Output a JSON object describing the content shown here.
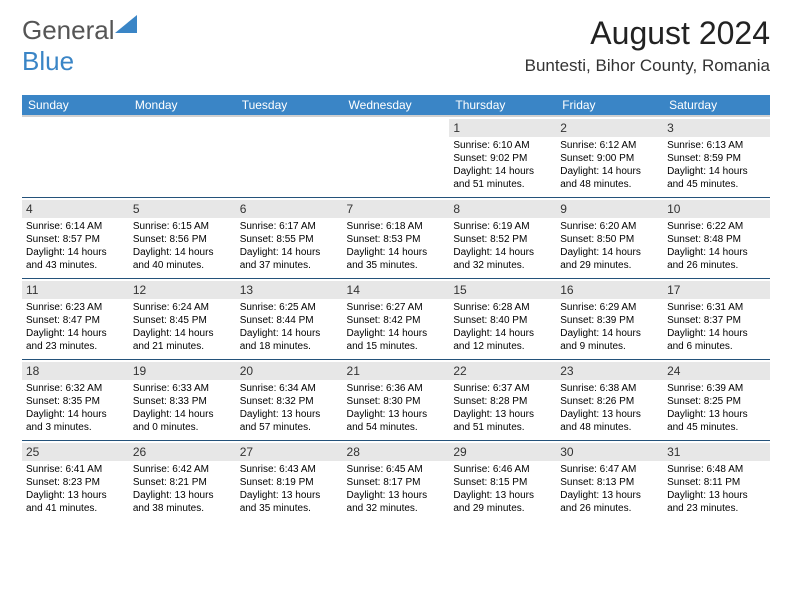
{
  "logo": {
    "general": "General",
    "blue": "Blue"
  },
  "title": "August 2024",
  "location": "Buntesti, Bihor County, Romania",
  "colors": {
    "header_bg": "#3a85c6",
    "header_fg": "#ffffff",
    "daynum_bg": "#e7e7e7",
    "row_border": "#24527a",
    "page_bg": "#ffffff"
  },
  "day_labels": [
    "Sunday",
    "Monday",
    "Tuesday",
    "Wednesday",
    "Thursday",
    "Friday",
    "Saturday"
  ],
  "weeks": [
    [
      {
        "n": "",
        "sr": "",
        "ss": "",
        "dl": ""
      },
      {
        "n": "",
        "sr": "",
        "ss": "",
        "dl": ""
      },
      {
        "n": "",
        "sr": "",
        "ss": "",
        "dl": ""
      },
      {
        "n": "",
        "sr": "",
        "ss": "",
        "dl": ""
      },
      {
        "n": "1",
        "sr": "Sunrise: 6:10 AM",
        "ss": "Sunset: 9:02 PM",
        "dl": "Daylight: 14 hours and 51 minutes."
      },
      {
        "n": "2",
        "sr": "Sunrise: 6:12 AM",
        "ss": "Sunset: 9:00 PM",
        "dl": "Daylight: 14 hours and 48 minutes."
      },
      {
        "n": "3",
        "sr": "Sunrise: 6:13 AM",
        "ss": "Sunset: 8:59 PM",
        "dl": "Daylight: 14 hours and 45 minutes."
      }
    ],
    [
      {
        "n": "4",
        "sr": "Sunrise: 6:14 AM",
        "ss": "Sunset: 8:57 PM",
        "dl": "Daylight: 14 hours and 43 minutes."
      },
      {
        "n": "5",
        "sr": "Sunrise: 6:15 AM",
        "ss": "Sunset: 8:56 PM",
        "dl": "Daylight: 14 hours and 40 minutes."
      },
      {
        "n": "6",
        "sr": "Sunrise: 6:17 AM",
        "ss": "Sunset: 8:55 PM",
        "dl": "Daylight: 14 hours and 37 minutes."
      },
      {
        "n": "7",
        "sr": "Sunrise: 6:18 AM",
        "ss": "Sunset: 8:53 PM",
        "dl": "Daylight: 14 hours and 35 minutes."
      },
      {
        "n": "8",
        "sr": "Sunrise: 6:19 AM",
        "ss": "Sunset: 8:52 PM",
        "dl": "Daylight: 14 hours and 32 minutes."
      },
      {
        "n": "9",
        "sr": "Sunrise: 6:20 AM",
        "ss": "Sunset: 8:50 PM",
        "dl": "Daylight: 14 hours and 29 minutes."
      },
      {
        "n": "10",
        "sr": "Sunrise: 6:22 AM",
        "ss": "Sunset: 8:48 PM",
        "dl": "Daylight: 14 hours and 26 minutes."
      }
    ],
    [
      {
        "n": "11",
        "sr": "Sunrise: 6:23 AM",
        "ss": "Sunset: 8:47 PM",
        "dl": "Daylight: 14 hours and 23 minutes."
      },
      {
        "n": "12",
        "sr": "Sunrise: 6:24 AM",
        "ss": "Sunset: 8:45 PM",
        "dl": "Daylight: 14 hours and 21 minutes."
      },
      {
        "n": "13",
        "sr": "Sunrise: 6:25 AM",
        "ss": "Sunset: 8:44 PM",
        "dl": "Daylight: 14 hours and 18 minutes."
      },
      {
        "n": "14",
        "sr": "Sunrise: 6:27 AM",
        "ss": "Sunset: 8:42 PM",
        "dl": "Daylight: 14 hours and 15 minutes."
      },
      {
        "n": "15",
        "sr": "Sunrise: 6:28 AM",
        "ss": "Sunset: 8:40 PM",
        "dl": "Daylight: 14 hours and 12 minutes."
      },
      {
        "n": "16",
        "sr": "Sunrise: 6:29 AM",
        "ss": "Sunset: 8:39 PM",
        "dl": "Daylight: 14 hours and 9 minutes."
      },
      {
        "n": "17",
        "sr": "Sunrise: 6:31 AM",
        "ss": "Sunset: 8:37 PM",
        "dl": "Daylight: 14 hours and 6 minutes."
      }
    ],
    [
      {
        "n": "18",
        "sr": "Sunrise: 6:32 AM",
        "ss": "Sunset: 8:35 PM",
        "dl": "Daylight: 14 hours and 3 minutes."
      },
      {
        "n": "19",
        "sr": "Sunrise: 6:33 AM",
        "ss": "Sunset: 8:33 PM",
        "dl": "Daylight: 14 hours and 0 minutes."
      },
      {
        "n": "20",
        "sr": "Sunrise: 6:34 AM",
        "ss": "Sunset: 8:32 PM",
        "dl": "Daylight: 13 hours and 57 minutes."
      },
      {
        "n": "21",
        "sr": "Sunrise: 6:36 AM",
        "ss": "Sunset: 8:30 PM",
        "dl": "Daylight: 13 hours and 54 minutes."
      },
      {
        "n": "22",
        "sr": "Sunrise: 6:37 AM",
        "ss": "Sunset: 8:28 PM",
        "dl": "Daylight: 13 hours and 51 minutes."
      },
      {
        "n": "23",
        "sr": "Sunrise: 6:38 AM",
        "ss": "Sunset: 8:26 PM",
        "dl": "Daylight: 13 hours and 48 minutes."
      },
      {
        "n": "24",
        "sr": "Sunrise: 6:39 AM",
        "ss": "Sunset: 8:25 PM",
        "dl": "Daylight: 13 hours and 45 minutes."
      }
    ],
    [
      {
        "n": "25",
        "sr": "Sunrise: 6:41 AM",
        "ss": "Sunset: 8:23 PM",
        "dl": "Daylight: 13 hours and 41 minutes."
      },
      {
        "n": "26",
        "sr": "Sunrise: 6:42 AM",
        "ss": "Sunset: 8:21 PM",
        "dl": "Daylight: 13 hours and 38 minutes."
      },
      {
        "n": "27",
        "sr": "Sunrise: 6:43 AM",
        "ss": "Sunset: 8:19 PM",
        "dl": "Daylight: 13 hours and 35 minutes."
      },
      {
        "n": "28",
        "sr": "Sunrise: 6:45 AM",
        "ss": "Sunset: 8:17 PM",
        "dl": "Daylight: 13 hours and 32 minutes."
      },
      {
        "n": "29",
        "sr": "Sunrise: 6:46 AM",
        "ss": "Sunset: 8:15 PM",
        "dl": "Daylight: 13 hours and 29 minutes."
      },
      {
        "n": "30",
        "sr": "Sunrise: 6:47 AM",
        "ss": "Sunset: 8:13 PM",
        "dl": "Daylight: 13 hours and 26 minutes."
      },
      {
        "n": "31",
        "sr": "Sunrise: 6:48 AM",
        "ss": "Sunset: 8:11 PM",
        "dl": "Daylight: 13 hours and 23 minutes."
      }
    ]
  ]
}
